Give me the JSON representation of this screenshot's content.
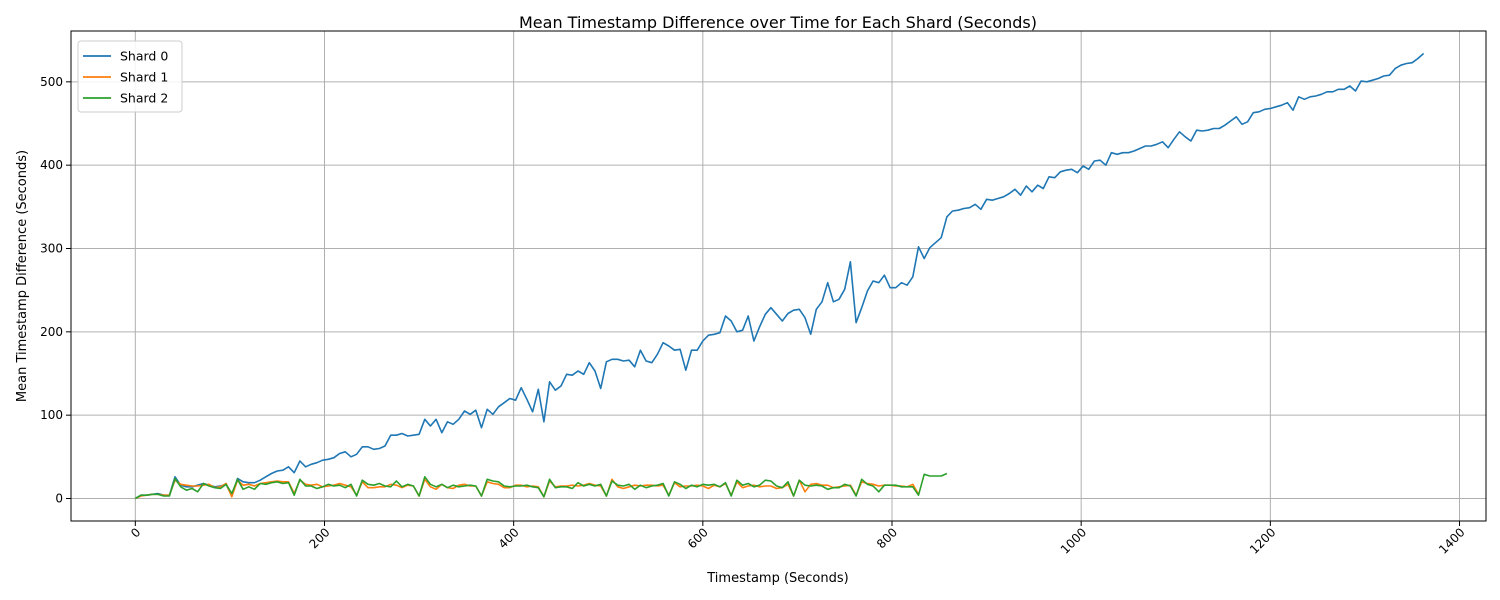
{
  "chart_data": {
    "type": "line",
    "title": "Mean Timestamp Difference over Time for Each Shard (Seconds)",
    "xlabel": "Timestamp (Seconds)",
    "ylabel": "Mean Timestamp Difference (Seconds)",
    "xlim": [
      -68,
      1428
    ],
    "ylim": [
      -27,
      561
    ],
    "xticks": [
      0,
      200,
      400,
      600,
      800,
      1000,
      1200,
      1400
    ],
    "xtick_labels": [
      "0",
      "200",
      "400",
      "600",
      "800",
      "1000",
      "1200",
      "1400"
    ],
    "yticks": [
      0,
      100,
      200,
      300,
      400,
      500
    ],
    "ytick_labels": [
      "0",
      "100",
      "200",
      "300",
      "400",
      "500"
    ],
    "grid": true,
    "legend_position": "top-left",
    "series": [
      {
        "name": "Shard 0",
        "color": "#1f77b4",
        "x": [
          0,
          6,
          12,
          18,
          24,
          30,
          36,
          42,
          48,
          54,
          60,
          66,
          72,
          78,
          84,
          90,
          96,
          102,
          108,
          114,
          120,
          126,
          132,
          138,
          144,
          150,
          156,
          162,
          168,
          174,
          180,
          186,
          192,
          198,
          204,
          210,
          216,
          222,
          228,
          234,
          240,
          246,
          252,
          258,
          264,
          270,
          276,
          282,
          288,
          294,
          300,
          306,
          312,
          318,
          324,
          330,
          336,
          342,
          348,
          354,
          360,
          366,
          372,
          378,
          384,
          390,
          396,
          402,
          408,
          414,
          420,
          426,
          432,
          438,
          444,
          450,
          456,
          462,
          468,
          474,
          480,
          486,
          492,
          498,
          504,
          510,
          516,
          522,
          528,
          534,
          540,
          546,
          552,
          558,
          564,
          570,
          576,
          582,
          588,
          594,
          600,
          606,
          612,
          618,
          624,
          630,
          636,
          642,
          648,
          654,
          660,
          666,
          672,
          678,
          684,
          690,
          696,
          702,
          708,
          714,
          720,
          726,
          732,
          738,
          744,
          750,
          756,
          762,
          768,
          774,
          780,
          786,
          792,
          798,
          804,
          810,
          816,
          822,
          828,
          834,
          840,
          846,
          852,
          858,
          864,
          870,
          876,
          882,
          888,
          894,
          900,
          906,
          912,
          918,
          924,
          930,
          936,
          942,
          948,
          954,
          960,
          966,
          972,
          978,
          984,
          990,
          996,
          1002,
          1008,
          1014,
          1020,
          1026,
          1032,
          1038,
          1044,
          1050,
          1056,
          1062,
          1068,
          1074,
          1080,
          1086,
          1092,
          1098,
          1104,
          1110,
          1116,
          1122,
          1128,
          1134,
          1140,
          1146,
          1152,
          1158,
          1164,
          1170,
          1176,
          1182,
          1188,
          1194,
          1200,
          1206,
          1212,
          1218,
          1224,
          1230,
          1236,
          1242,
          1248,
          1254,
          1260,
          1266,
          1272,
          1278,
          1284,
          1290,
          1296,
          1302,
          1308,
          1314,
          1320,
          1326,
          1332,
          1338,
          1344,
          1350,
          1356,
          1362
        ],
        "y": [
          0,
          4,
          4,
          5,
          6,
          4,
          4,
          26,
          16,
          14,
          14,
          16,
          18,
          16,
          14,
          15,
          17,
          3,
          24,
          20,
          19,
          19,
          22,
          26,
          30,
          33,
          34,
          38,
          31,
          45,
          38,
          41,
          43,
          46,
          47,
          49,
          54,
          56,
          50,
          53,
          62,
          62,
          59,
          60,
          63,
          76,
          76,
          78,
          75,
          76,
          77,
          95,
          87,
          95,
          79,
          92,
          89,
          95,
          105,
          101,
          106,
          85,
          107,
          101,
          110,
          115,
          120,
          118,
          133,
          119,
          104,
          131,
          92,
          140,
          130,
          135,
          149,
          148,
          153,
          149,
          163,
          153,
          132,
          164,
          167,
          167,
          165,
          166,
          158,
          178,
          165,
          163,
          173,
          187,
          183,
          178,
          179,
          154,
          178,
          178,
          189,
          196,
          197,
          199,
          219,
          213,
          200,
          202,
          219,
          189,
          206,
          221,
          229,
          221,
          213,
          222,
          226,
          227,
          217,
          197,
          227,
          236,
          259,
          236,
          239,
          251,
          284,
          211,
          229,
          249,
          261,
          259,
          268,
          253,
          253,
          259,
          256,
          266,
          302,
          288,
          301,
          307,
          313,
          338,
          345,
          346,
          348,
          349,
          353,
          347,
          359,
          358,
          360,
          362,
          366,
          371,
          364,
          375,
          368,
          376,
          372,
          386,
          385,
          392,
          394,
          395,
          391,
          399,
          395,
          405,
          406,
          400,
          415,
          413,
          415,
          415,
          417,
          420,
          423,
          423,
          425,
          428,
          421,
          431,
          440,
          434,
          429,
          442,
          441,
          442,
          444,
          444,
          448,
          453,
          458,
          449,
          452,
          463,
          464,
          467,
          468,
          470,
          472,
          475,
          466,
          482,
          479,
          482,
          483,
          485,
          488,
          488,
          491,
          491,
          495,
          489,
          501,
          500,
          502,
          504,
          507,
          508,
          516,
          520,
          522,
          523,
          528,
          534
        ]
      },
      {
        "name": "Shard 1",
        "color": "#ff7f0e",
        "x": [
          0,
          6,
          12,
          18,
          24,
          30,
          36,
          42,
          48,
          54,
          60,
          66,
          72,
          78,
          84,
          90,
          96,
          102,
          108,
          114,
          120,
          126,
          132,
          138,
          144,
          150,
          156,
          162,
          168,
          174,
          180,
          186,
          192,
          198,
          204,
          210,
          216,
          222,
          228,
          234,
          240,
          246,
          252,
          258,
          264,
          270,
          276,
          282,
          288,
          294,
          300,
          306,
          312,
          318,
          324,
          330,
          336,
          342,
          348,
          354,
          360,
          366,
          372,
          378,
          384,
          390,
          396,
          402,
          408,
          414,
          420,
          426,
          432,
          438,
          444,
          450,
          456,
          462,
          468,
          474,
          480,
          486,
          492,
          498,
          504,
          510,
          516,
          522,
          528,
          534,
          540,
          546,
          552,
          558,
          564,
          570,
          576,
          582,
          588,
          594,
          600,
          606,
          612,
          618,
          624,
          630,
          636,
          642,
          648,
          654,
          660,
          666,
          672,
          678,
          684,
          690,
          696,
          702,
          708,
          714,
          720,
          726,
          732,
          738,
          744,
          750,
          756,
          762,
          768,
          774,
          780,
          786,
          792,
          798,
          804,
          810,
          816,
          822,
          828
        ],
        "y": [
          0,
          3,
          4,
          5,
          5,
          4,
          4,
          22,
          17,
          16,
          15,
          15,
          16,
          17,
          13,
          14,
          18,
          2,
          22,
          16,
          17,
          15,
          18,
          19,
          20,
          21,
          20,
          20,
          6,
          22,
          17,
          16,
          17,
          14,
          15,
          16,
          18,
          16,
          14,
          4,
          20,
          13,
          13,
          14,
          14,
          17,
          16,
          13,
          16,
          15,
          3,
          23,
          14,
          11,
          17,
          13,
          12,
          16,
          17,
          15,
          15,
          3,
          20,
          18,
          17,
          13,
          13,
          16,
          16,
          14,
          15,
          14,
          2,
          21,
          14,
          15,
          15,
          16,
          15,
          16,
          18,
          16,
          15,
          3,
          23,
          14,
          12,
          14,
          16,
          15,
          16,
          16,
          15,
          16,
          4,
          19,
          14,
          15,
          15,
          16,
          15,
          12,
          16,
          14,
          18,
          4,
          20,
          13,
          15,
          16,
          14,
          15,
          15,
          12,
          13,
          17,
          3,
          22,
          8,
          17,
          18,
          16,
          16,
          13,
          14,
          15,
          16,
          4,
          20,
          18,
          17,
          15,
          16,
          16,
          15,
          15,
          14,
          17,
          5
        ]
      },
      {
        "name": "Shard 2",
        "color": "#2ca02c",
        "x": [
          0,
          6,
          12,
          18,
          24,
          30,
          36,
          42,
          48,
          54,
          60,
          66,
          72,
          78,
          84,
          90,
          96,
          102,
          108,
          114,
          120,
          126,
          132,
          138,
          144,
          150,
          156,
          162,
          168,
          174,
          180,
          186,
          192,
          198,
          204,
          210,
          216,
          222,
          228,
          234,
          240,
          246,
          252,
          258,
          264,
          270,
          276,
          282,
          288,
          294,
          300,
          306,
          312,
          318,
          324,
          330,
          336,
          342,
          348,
          354,
          360,
          366,
          372,
          378,
          384,
          390,
          396,
          402,
          408,
          414,
          420,
          426,
          432,
          438,
          444,
          450,
          456,
          462,
          468,
          474,
          480,
          486,
          492,
          498,
          504,
          510,
          516,
          522,
          528,
          534,
          540,
          546,
          552,
          558,
          564,
          570,
          576,
          582,
          588,
          594,
          600,
          606,
          612,
          618,
          624,
          630,
          636,
          642,
          648,
          654,
          660,
          666,
          672,
          678,
          684,
          690,
          696,
          702,
          708,
          714,
          720,
          726,
          732,
          738,
          744,
          750,
          756,
          762,
          768,
          774,
          780,
          786,
          792,
          798,
          804,
          810,
          816,
          822,
          828,
          834,
          840,
          846,
          852,
          858
        ],
        "y": [
          0,
          4,
          4,
          5,
          5,
          3,
          3,
          24,
          14,
          10,
          12,
          8,
          18,
          15,
          13,
          12,
          17,
          6,
          23,
          11,
          14,
          11,
          18,
          17,
          19,
          20,
          18,
          19,
          4,
          23,
          15,
          15,
          12,
          14,
          17,
          15,
          16,
          13,
          17,
          3,
          22,
          17,
          16,
          18,
          15,
          14,
          21,
          14,
          17,
          15,
          3,
          26,
          17,
          14,
          17,
          13,
          16,
          14,
          15,
          16,
          15,
          3,
          23,
          21,
          20,
          15,
          14,
          15,
          15,
          16,
          14,
          13,
          2,
          23,
          13,
          14,
          14,
          12,
          19,
          15,
          17,
          15,
          17,
          3,
          21,
          16,
          15,
          17,
          11,
          16,
          13,
          15,
          16,
          18,
          3,
          20,
          17,
          12,
          16,
          14,
          17,
          16,
          17,
          14,
          19,
          3,
          22,
          16,
          18,
          14,
          16,
          22,
          21,
          15,
          13,
          20,
          3,
          22,
          16,
          15,
          16,
          15,
          11,
          13,
          13,
          17,
          15,
          3,
          23,
          17,
          15,
          8,
          16,
          16,
          16,
          14,
          14,
          14,
          4,
          29,
          27,
          27,
          27,
          30
        ]
      }
    ]
  }
}
